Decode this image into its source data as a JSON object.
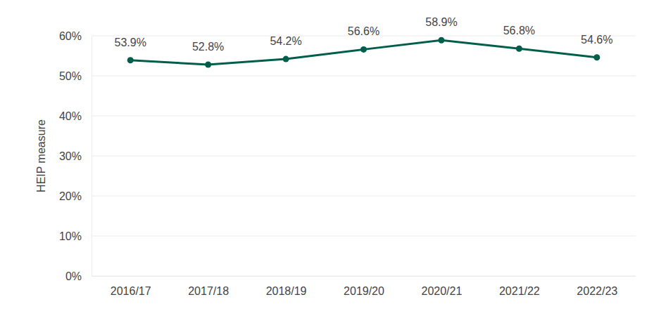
{
  "chart_data": {
    "type": "line",
    "categories": [
      "2016/17",
      "2017/18",
      "2018/19",
      "2019/20",
      "2020/21",
      "2021/22",
      "2022/23"
    ],
    "values": [
      53.9,
      52.8,
      54.2,
      56.6,
      58.9,
      56.8,
      54.6
    ],
    "value_labels": [
      "53.9%",
      "52.8%",
      "54.2%",
      "56.6%",
      "58.9%",
      "56.8%",
      "54.6%"
    ],
    "y_label": "HEIP measure",
    "color": "#005e4a",
    "ylim": [
      0,
      60
    ],
    "yticks": [
      {
        "value": 0,
        "label": "0%"
      },
      {
        "value": 10,
        "label": "10%"
      },
      {
        "value": 20,
        "label": "20%"
      },
      {
        "value": 30,
        "label": "30%"
      },
      {
        "value": 40,
        "label": "40%"
      },
      {
        "value": 50,
        "label": "50%"
      },
      {
        "value": 60,
        "label": "60%"
      }
    ],
    "grid": true,
    "data_labels": true,
    "marker": "circle",
    "line_style": "solid"
  }
}
